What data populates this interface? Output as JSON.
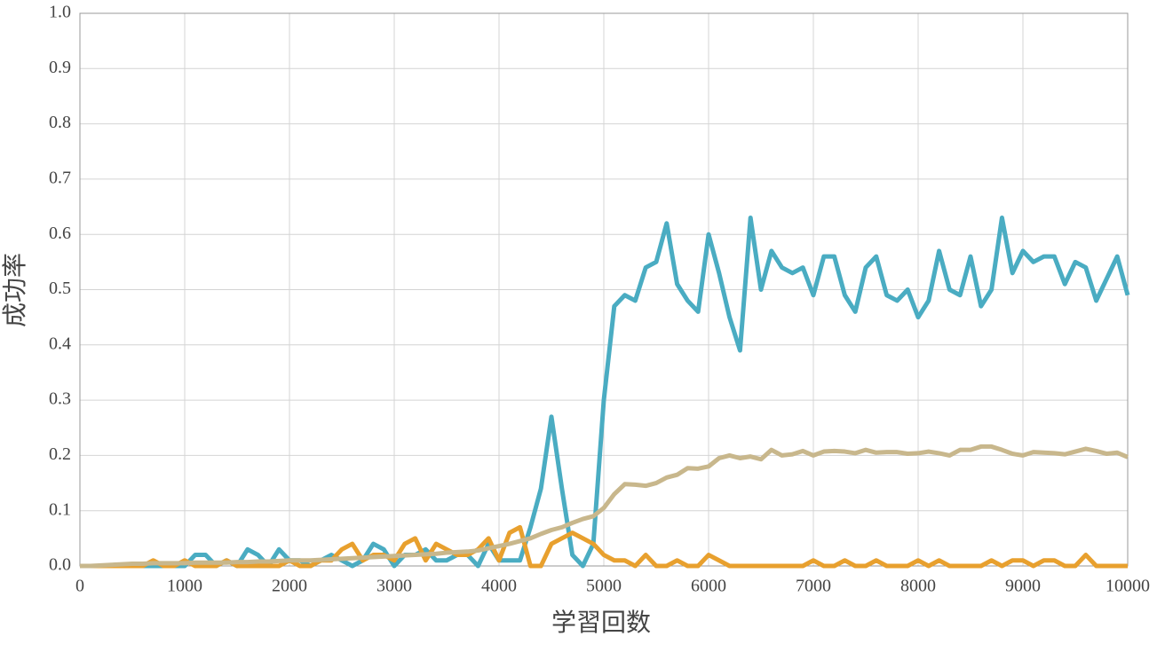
{
  "chart_data": {
    "type": "line",
    "xlabel": "学習回数",
    "ylabel": "成功率",
    "x": [
      0,
      100,
      200,
      300,
      400,
      500,
      600,
      700,
      800,
      900,
      1000,
      1100,
      1200,
      1300,
      1400,
      1500,
      1600,
      1700,
      1800,
      1900,
      2000,
      2100,
      2200,
      2300,
      2400,
      2500,
      2600,
      2700,
      2800,
      2900,
      3000,
      3100,
      3200,
      3300,
      3400,
      3500,
      3600,
      3700,
      3800,
      3900,
      4000,
      4100,
      4200,
      4300,
      4400,
      4500,
      4600,
      4700,
      4800,
      4900,
      5000,
      5100,
      5200,
      5300,
      5400,
      5500,
      5600,
      5700,
      5800,
      5900,
      6000,
      6100,
      6200,
      6300,
      6400,
      6500,
      6600,
      6700,
      6800,
      6900,
      7000,
      7100,
      7200,
      7300,
      7400,
      7500,
      7600,
      7700,
      7800,
      7900,
      8000,
      8100,
      8200,
      8300,
      8400,
      8500,
      8600,
      8700,
      8800,
      8900,
      9000,
      9100,
      9200,
      9300,
      9400,
      9500,
      9600,
      9700,
      9800,
      9900,
      10000
    ],
    "series": [
      {
        "color": "#4aacc2",
        "values": [
          0,
          0,
          0,
          0,
          0,
          0,
          0,
          0,
          0,
          0,
          0,
          0.02,
          0.02,
          0,
          0.01,
          0,
          0.03,
          0.02,
          0,
          0.03,
          0.01,
          0.01,
          0,
          0.01,
          0.02,
          0.01,
          0,
          0.01,
          0.04,
          0.03,
          0,
          0.02,
          0.02,
          0.03,
          0.01,
          0.01,
          0.02,
          0.02,
          0,
          0.04,
          0.01,
          0.01,
          0.01,
          0.07,
          0.14,
          0.27,
          0.14,
          0.02,
          0,
          0.04,
          0.3,
          0.47,
          0.49,
          0.48,
          0.54,
          0.55,
          0.62,
          0.51,
          0.48,
          0.46,
          0.6,
          0.53,
          0.45,
          0.39,
          0.63,
          0.5,
          0.57,
          0.54,
          0.53,
          0.54,
          0.49,
          0.56,
          0.56,
          0.49,
          0.46,
          0.54,
          0.56,
          0.49,
          0.48,
          0.5,
          0.45,
          0.48,
          0.57,
          0.5,
          0.49,
          0.56,
          0.47,
          0.5,
          0.63,
          0.53,
          0.57,
          0.55,
          0.56,
          0.56,
          0.51,
          0.55,
          0.54,
          0.48,
          0.52,
          0.56,
          0.49
        ]
      },
      {
        "color": "#e8a02e",
        "values": [
          0,
          0,
          0,
          0,
          0,
          0,
          0,
          0.01,
          0,
          0,
          0.01,
          0,
          0,
          0,
          0.01,
          0,
          0,
          0,
          0,
          0,
          0.01,
          0,
          0,
          0.01,
          0.01,
          0.03,
          0.04,
          0.01,
          0.02,
          0.02,
          0.01,
          0.04,
          0.05,
          0.01,
          0.04,
          0.03,
          0.02,
          0.02,
          0.03,
          0.05,
          0.01,
          0.06,
          0.07,
          0,
          0,
          0.04,
          0.05,
          0.06,
          0.05,
          0.04,
          0.02,
          0.01,
          0.01,
          0,
          0.02,
          0,
          0,
          0.01,
          0,
          0,
          0.02,
          0.01,
          0,
          0,
          0,
          0,
          0,
          0,
          0,
          0,
          0.01,
          0,
          0,
          0.01,
          0,
          0,
          0.01,
          0,
          0,
          0,
          0.01,
          0,
          0.01,
          0,
          0,
          0,
          0,
          0.01,
          0,
          0.01,
          0.01,
          0,
          0.01,
          0.01,
          0,
          0,
          0.02,
          0,
          0,
          0,
          0
        ]
      },
      {
        "color": "#c8b78c",
        "values": [
          0,
          0,
          0.001,
          0.002,
          0.003,
          0.004,
          0.004,
          0.005,
          0.005,
          0.005,
          0.005,
          0.006,
          0.006,
          0.006,
          0.006,
          0.007,
          0.007,
          0.008,
          0.008,
          0.009,
          0.01,
          0.01,
          0.01,
          0.011,
          0.012,
          0.013,
          0.014,
          0.015,
          0.016,
          0.017,
          0.018,
          0.019,
          0.02,
          0.021,
          0.022,
          0.024,
          0.025,
          0.026,
          0.028,
          0.032,
          0.036,
          0.04,
          0.045,
          0.05,
          0.058,
          0.065,
          0.07,
          0.078,
          0.085,
          0.09,
          0.105,
          0.13,
          0.148,
          0.147,
          0.145,
          0.15,
          0.16,
          0.165,
          0.177,
          0.176,
          0.18,
          0.195,
          0.2,
          0.195,
          0.198,
          0.193,
          0.21,
          0.2,
          0.202,
          0.208,
          0.2,
          0.207,
          0.208,
          0.207,
          0.204,
          0.21,
          0.205,
          0.206,
          0.206,
          0.203,
          0.204,
          0.207,
          0.204,
          0.2,
          0.21,
          0.21,
          0.216,
          0.216,
          0.21,
          0.203,
          0.2,
          0.206,
          0.205,
          0.204,
          0.202,
          0.207,
          0.212,
          0.208,
          0.203,
          0.205,
          0.197
        ]
      }
    ],
    "xlim": [
      0,
      10000
    ],
    "ylim": [
      0,
      1
    ],
    "xticks": [
      0,
      1000,
      2000,
      3000,
      4000,
      5000,
      6000,
      7000,
      8000,
      9000,
      10000
    ],
    "yticks": [
      {
        "value": 0,
        "label": "0.0"
      },
      0.1,
      0.2,
      0.3,
      0.4,
      0.5,
      0.6,
      0.7,
      0.8,
      0.9,
      {
        "value": 1,
        "label": "1.0"
      }
    ],
    "grid": true
  }
}
